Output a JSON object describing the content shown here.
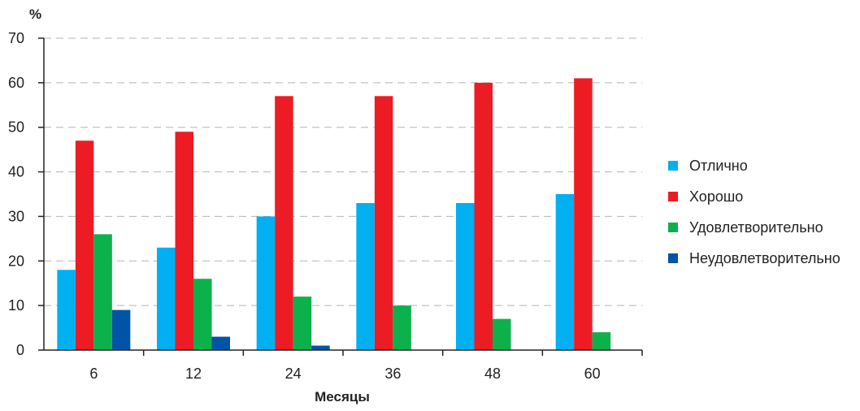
{
  "chart_data": {
    "type": "bar",
    "title": "",
    "xlabel": "Месяцы",
    "ylabel": "%",
    "ylim": [
      0,
      70
    ],
    "yticks": [
      0,
      10,
      20,
      30,
      40,
      50,
      60,
      70
    ],
    "grid": true,
    "legend_position": "right",
    "categories": [
      "6",
      "12",
      "24",
      "36",
      "48",
      "60"
    ],
    "series": [
      {
        "name": "Отлично",
        "color": "#00b0f0",
        "values": [
          18,
          23,
          30,
          33,
          33,
          35
        ]
      },
      {
        "name": "Хорошо",
        "color": "#ed1c24",
        "values": [
          47,
          49,
          57,
          57,
          60,
          61
        ]
      },
      {
        "name": "Удовлетворительно",
        "color": "#0db14b",
        "values": [
          26,
          16,
          12,
          10,
          7,
          4
        ]
      },
      {
        "name": "Неудовлетворительно",
        "color": "#0054a6",
        "values": [
          9,
          3,
          1,
          0,
          0,
          0
        ]
      }
    ]
  }
}
